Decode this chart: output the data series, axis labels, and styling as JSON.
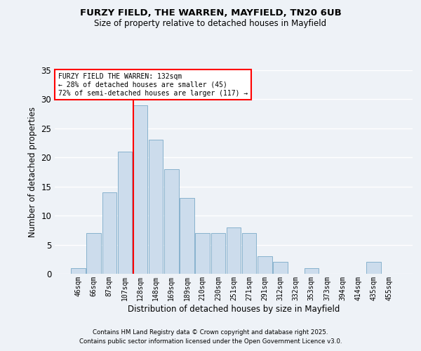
{
  "title1": "FURZY FIELD, THE WARREN, MAYFIELD, TN20 6UB",
  "title2": "Size of property relative to detached houses in Mayfield",
  "xlabel": "Distribution of detached houses by size in Mayfield",
  "ylabel": "Number of detached properties",
  "bar_labels": [
    "46sqm",
    "66sqm",
    "87sqm",
    "107sqm",
    "128sqm",
    "148sqm",
    "169sqm",
    "189sqm",
    "210sqm",
    "230sqm",
    "251sqm",
    "271sqm",
    "291sqm",
    "312sqm",
    "332sqm",
    "353sqm",
    "373sqm",
    "394sqm",
    "414sqm",
    "435sqm",
    "455sqm"
  ],
  "bar_values": [
    1,
    7,
    14,
    21,
    29,
    23,
    18,
    13,
    7,
    7,
    8,
    7,
    3,
    2,
    0,
    1,
    0,
    0,
    0,
    2,
    0
  ],
  "bar_color": "#ccdcec",
  "bar_edge_color": "#7aaac8",
  "reference_bar_index": 4,
  "reference_line_color": "red",
  "annotation_text": "FURZY FIELD THE WARREN: 132sqm\n← 28% of detached houses are smaller (45)\n72% of semi-detached houses are larger (117) →",
  "annotation_box_color": "white",
  "annotation_box_edge": "red",
  "ylim": [
    0,
    35
  ],
  "yticks": [
    0,
    5,
    10,
    15,
    20,
    25,
    30,
    35
  ],
  "footnote1": "Contains HM Land Registry data © Crown copyright and database right 2025.",
  "footnote2": "Contains public sector information licensed under the Open Government Licence v3.0.",
  "bg_color": "#eef2f7",
  "grid_color": "white"
}
